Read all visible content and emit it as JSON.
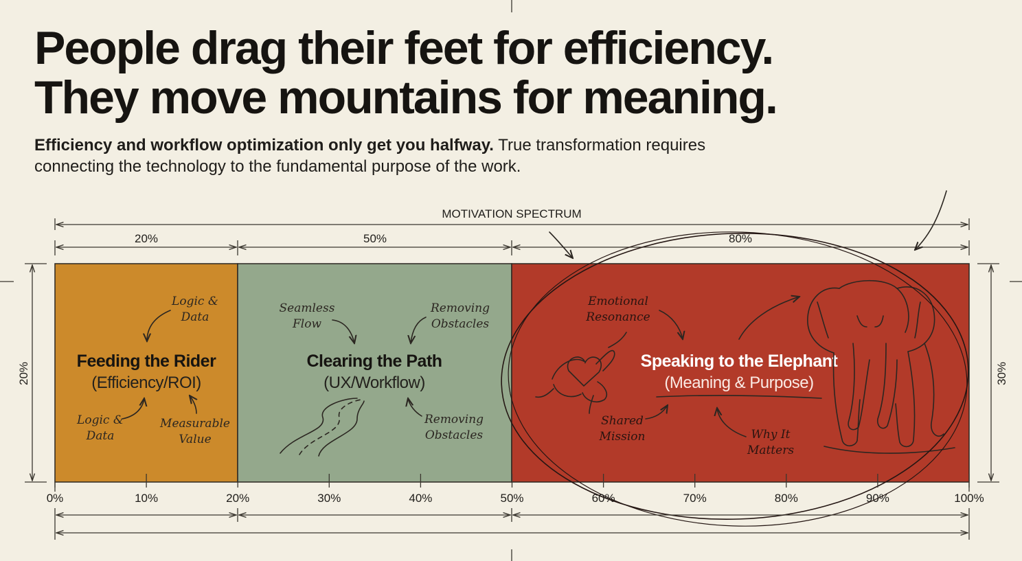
{
  "headline": {
    "line1": "People drag their feet for efficiency.",
    "line2": "They move mountains for meaning."
  },
  "subhead": {
    "bold": "Efficiency and workflow optimization only get you halfway.",
    "rest": " True transformation requires connecting the technology to the fundamental purpose of the work."
  },
  "spectrum_label": "MOTIVATION SPECTRUM",
  "segments": [
    {
      "width_label": "20%",
      "title": "Feeding the Rider",
      "subtitle": "(Efficiency/ROI)",
      "color": "#cc8a2b",
      "notes": [
        [
          "Logic &",
          "Data"
        ],
        [
          "Logic &",
          "Data"
        ],
        [
          "Measurable",
          "Value"
        ]
      ]
    },
    {
      "width_label": "50%",
      "title": "Clearing the Path",
      "subtitle": "(UX/Workflow)",
      "color": "#94a88c",
      "notes": [
        [
          "Seamless",
          "Flow"
        ],
        [
          "Removing",
          "Obstacles"
        ],
        [
          "Removing",
          "Obstacles"
        ]
      ]
    },
    {
      "width_label": "80%",
      "title": "Speaking to the Elephant",
      "subtitle": "(Meaning & Purpose)",
      "color": "#b23a29",
      "notes": [
        [
          "Emotional",
          "Resonance"
        ],
        [
          "Shared",
          "Mission"
        ],
        [
          "Why It",
          "Matters"
        ]
      ]
    }
  ],
  "side_labels": {
    "left": "20%",
    "right": "30%"
  },
  "axis_ticks": [
    "0%",
    "10%",
    "20%",
    "30%",
    "40%",
    "50%",
    "60%",
    "70%",
    "80%",
    "90%",
    "100%"
  ],
  "icons": [
    "elephant-sketch",
    "heart-hands-sketch",
    "winding-path-sketch",
    "curved-arrow"
  ]
}
